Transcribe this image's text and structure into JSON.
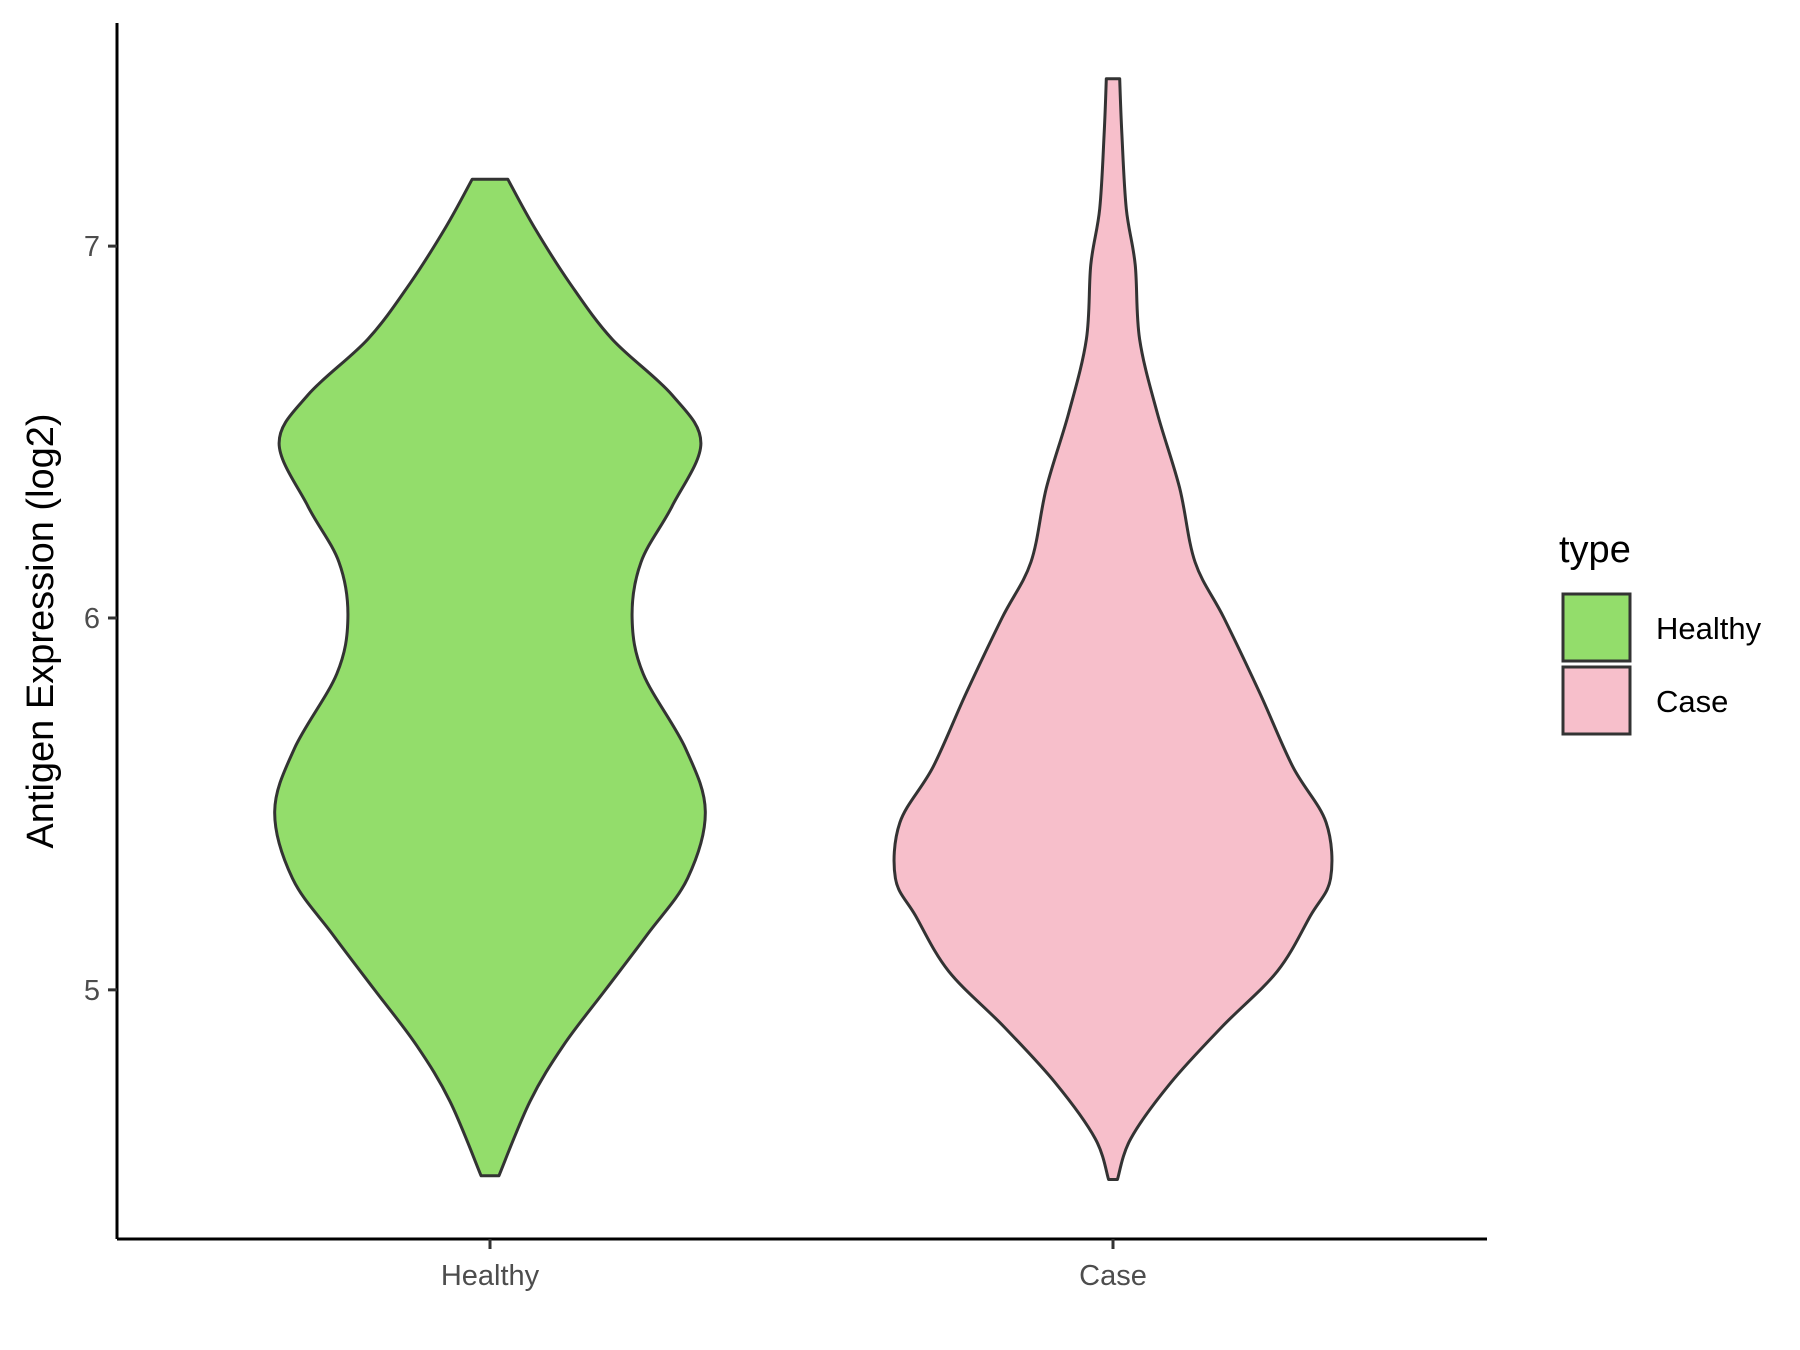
{
  "chart_data": {
    "type": "violin",
    "title": "",
    "xlabel": "",
    "ylabel": "Antigen Expression (log2)",
    "ylim": [
      4.33,
      7.6
    ],
    "yticks": [
      5,
      6,
      7
    ],
    "categories": [
      "Healthy",
      "Case"
    ],
    "grid": false,
    "colors": {
      "Healthy": "#93dd6b",
      "Case": "#f7bfcb",
      "outline": "#333333"
    },
    "legend": {
      "title": "type",
      "position": "right",
      "entries": [
        {
          "label": "Healthy",
          "color": "#93dd6b"
        },
        {
          "label": "Case",
          "color": "#f7bfcb"
        }
      ]
    },
    "series": [
      {
        "name": "Healthy",
        "min": 4.5,
        "max": 7.18,
        "profile": [
          [
            4.5,
            0.04
          ],
          [
            4.7,
            0.18
          ],
          [
            4.85,
            0.33
          ],
          [
            5.0,
            0.52
          ],
          [
            5.15,
            0.71
          ],
          [
            5.3,
            0.89
          ],
          [
            5.48,
            0.97
          ],
          [
            5.65,
            0.88
          ],
          [
            5.85,
            0.69
          ],
          [
            6.0,
            0.64
          ],
          [
            6.15,
            0.68
          ],
          [
            6.3,
            0.82
          ],
          [
            6.47,
            0.95
          ],
          [
            6.6,
            0.82
          ],
          [
            6.75,
            0.55
          ],
          [
            6.9,
            0.36
          ],
          [
            7.05,
            0.2
          ],
          [
            7.18,
            0.08
          ]
        ]
      },
      {
        "name": "Case",
        "min": 4.49,
        "max": 7.45,
        "profile": [
          [
            4.49,
            0.02
          ],
          [
            4.6,
            0.08
          ],
          [
            4.75,
            0.26
          ],
          [
            4.9,
            0.49
          ],
          [
            5.05,
            0.74
          ],
          [
            5.2,
            0.89
          ],
          [
            5.3,
            0.98
          ],
          [
            5.45,
            0.96
          ],
          [
            5.6,
            0.81
          ],
          [
            5.8,
            0.66
          ],
          [
            6.0,
            0.5
          ],
          [
            6.15,
            0.37
          ],
          [
            6.35,
            0.3
          ],
          [
            6.55,
            0.2
          ],
          [
            6.75,
            0.12
          ],
          [
            6.95,
            0.1
          ],
          [
            7.1,
            0.06
          ],
          [
            7.3,
            0.04
          ],
          [
            7.45,
            0.03
          ]
        ]
      }
    ]
  }
}
